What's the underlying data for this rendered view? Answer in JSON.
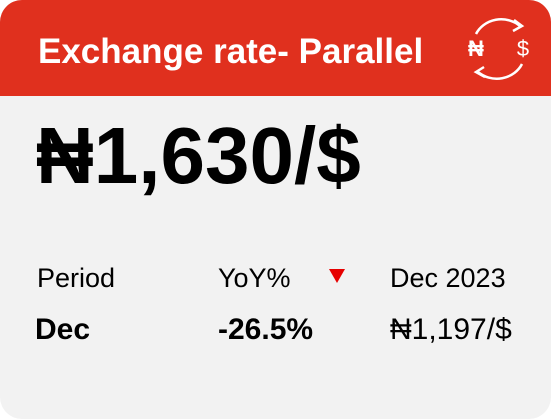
{
  "header": {
    "title": "Exchange rate- Parallel",
    "icon": {
      "from": "₦",
      "to": "$"
    }
  },
  "main_value": "₦1,630/$",
  "stats": [
    {
      "label": "Period",
      "value": "Dec"
    },
    {
      "label": "YoY%",
      "value": "-26.5%"
    },
    {
      "label": "Dec 2023",
      "value": "₦1,197/$"
    }
  ]
}
